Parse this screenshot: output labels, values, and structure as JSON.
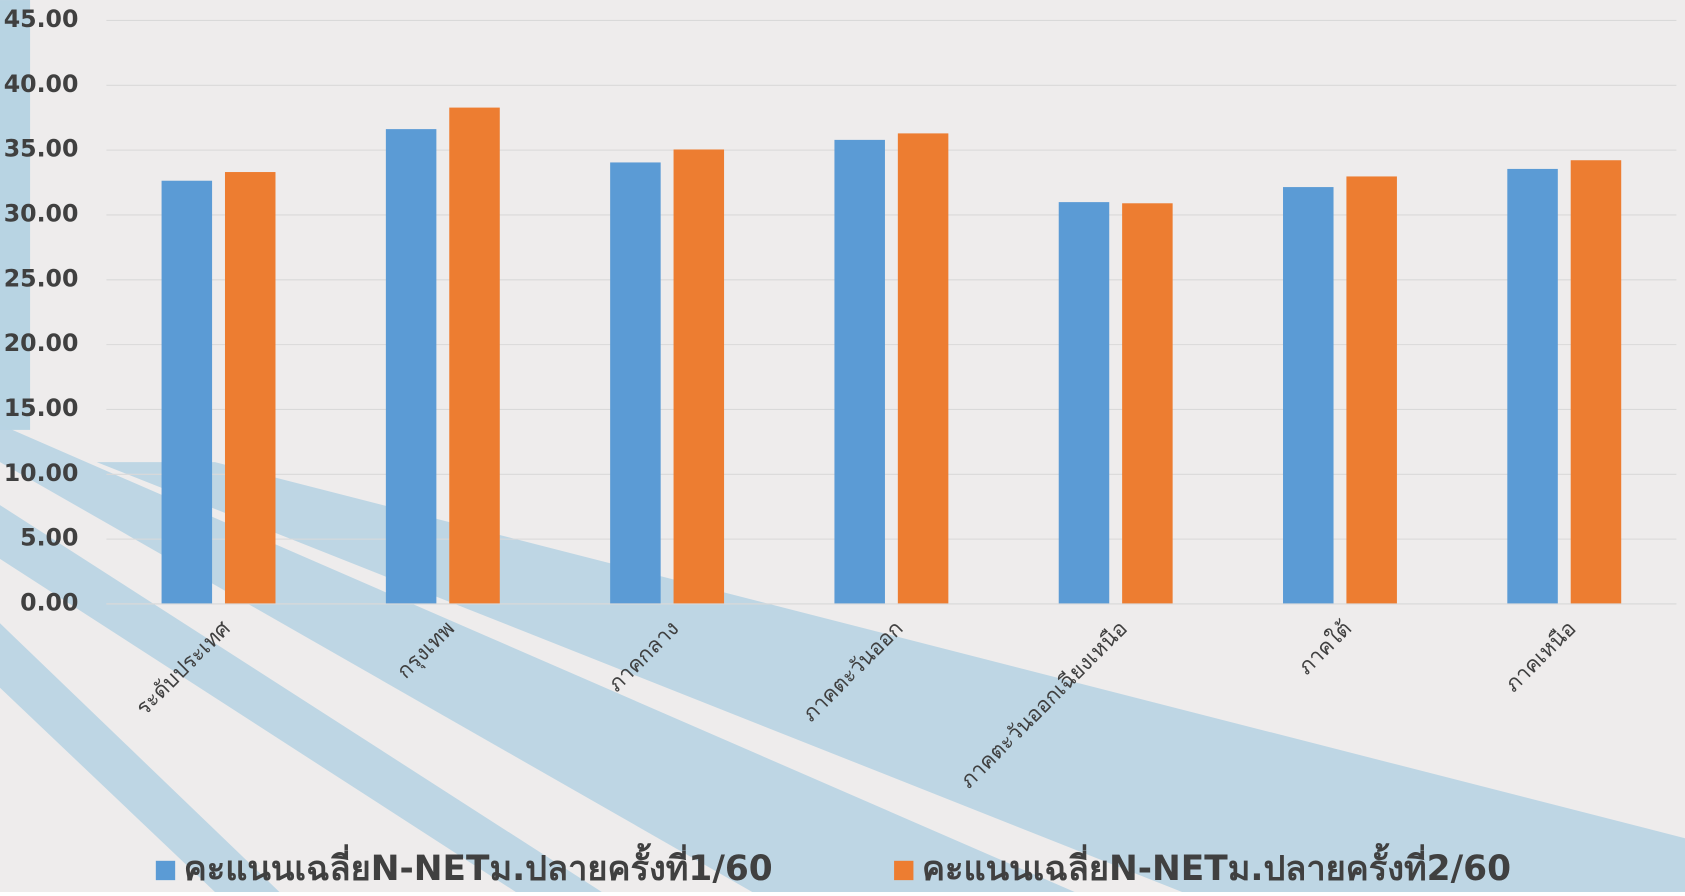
{
  "chart_data": {
    "type": "bar",
    "categories": [
      "ระดับประเทศ",
      "กรุงเทพ",
      "ภาคกลาง",
      "ภาคตะวันออก",
      "ภาคตะวันออกเฉียงเหนือ",
      "ภาคใต้",
      "ภาคเหนือ"
    ],
    "series": [
      {
        "name": "คะแนนเฉลี่ยN-NETม.ปลายครั้งที่1/60",
        "color": "#5b9bd5",
        "values": [
          32.64,
          36.62,
          34.05,
          35.79,
          30.99,
          32.15,
          33.55
        ]
      },
      {
        "name": "คะแนนเฉลี่ยN-NETม.ปลายครั้งที่2/60",
        "color": "#ed7d31",
        "values": [
          33.31,
          38.28,
          35.05,
          36.29,
          30.9,
          32.97,
          34.22
        ]
      }
    ],
    "ylim": [
      0,
      45
    ],
    "yticks": [
      {
        "value": 0,
        "label": "0.00"
      },
      {
        "value": 5,
        "label": "5.00"
      },
      {
        "value": 10,
        "label": "10.00"
      },
      {
        "value": 15,
        "label": "15.00"
      },
      {
        "value": 20,
        "label": "20.00"
      },
      {
        "value": 25,
        "label": "25.00"
      },
      {
        "value": 30,
        "label": "30.00"
      },
      {
        "value": 35,
        "label": "35.00"
      },
      {
        "value": 40,
        "label": "40.00"
      },
      {
        "value": 45,
        "label": "45.00"
      }
    ],
    "grid": true,
    "legend": "bottom"
  }
}
